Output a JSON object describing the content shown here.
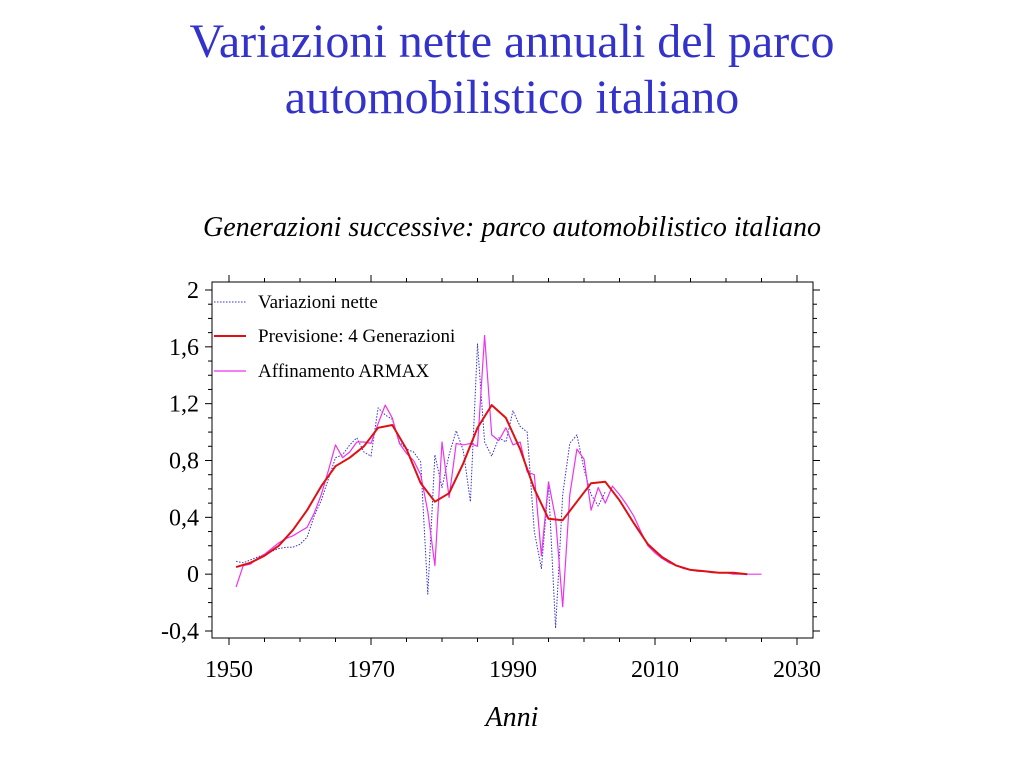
{
  "slide": {
    "title_line1": "Variazioni nette annuali del parco",
    "title_line2": "automobilistico italiano",
    "title_color": "#3333cc"
  },
  "chart_data": {
    "type": "line",
    "title": "Generazioni successive: parco automobilistico italiano",
    "xlabel": "Anni",
    "ylabel": "",
    "xlim": [
      1950,
      2030
    ],
    "ylim": [
      -0.4,
      2
    ],
    "x_ticks": [
      1950,
      1970,
      1990,
      2010,
      2030
    ],
    "x_tick_labels": [
      "1950",
      "1970",
      "1990",
      "2010",
      "2030"
    ],
    "y_ticks": [
      -0.4,
      0,
      0.4,
      0.8,
      1.2,
      1.6,
      2
    ],
    "y_tick_labels": [
      "-0,4",
      "0",
      "0,4",
      "0,8",
      "1,2",
      "1,6",
      "2"
    ],
    "grid": false,
    "legend_position": "top-left",
    "series": [
      {
        "name": "Variazioni nette",
        "color": "#3333cc",
        "style": "dotted",
        "points": [
          [
            1951,
            0.09
          ],
          [
            1952,
            0.08
          ],
          [
            1953,
            0.1
          ],
          [
            1954,
            0.12
          ],
          [
            1955,
            0.14
          ],
          [
            1956,
            0.16
          ],
          [
            1957,
            0.18
          ],
          [
            1958,
            0.19
          ],
          [
            1959,
            0.19
          ],
          [
            1960,
            0.21
          ],
          [
            1961,
            0.26
          ],
          [
            1962,
            0.41
          ],
          [
            1963,
            0.52
          ],
          [
            1964,
            0.67
          ],
          [
            1965,
            0.82
          ],
          [
            1966,
            0.84
          ],
          [
            1967,
            0.91
          ],
          [
            1968,
            0.96
          ],
          [
            1969,
            0.86
          ],
          [
            1970,
            0.83
          ],
          [
            1971,
            1.17
          ],
          [
            1972,
            1.12
          ],
          [
            1973,
            1.09
          ],
          [
            1974,
            0.93
          ],
          [
            1975,
            0.88
          ],
          [
            1976,
            0.86
          ],
          [
            1977,
            0.79
          ],
          [
            1978,
            -0.14
          ],
          [
            1979,
            0.84
          ],
          [
            1980,
            0.61
          ],
          [
            1981,
            0.84
          ],
          [
            1982,
            1.01
          ],
          [
            1983,
            0.87
          ],
          [
            1984,
            0.51
          ],
          [
            1985,
            1.62
          ],
          [
            1986,
            0.93
          ],
          [
            1987,
            0.83
          ],
          [
            1988,
            0.96
          ],
          [
            1989,
            0.93
          ],
          [
            1990,
            1.15
          ],
          [
            1991,
            1.04
          ],
          [
            1992,
            1.0
          ],
          [
            1993,
            0.3
          ],
          [
            1994,
            0.04
          ],
          [
            1995,
            0.63
          ],
          [
            1996,
            -0.38
          ],
          [
            1997,
            0.56
          ],
          [
            1998,
            0.92
          ],
          [
            1999,
            0.98
          ],
          [
            2000,
            0.74
          ],
          [
            2001,
            0.56
          ],
          [
            2002,
            0.48
          ],
          [
            2003,
            0.58
          ]
        ]
      },
      {
        "name": "Previsione:  4 Generazioni",
        "color": "#dd1111",
        "style": "solid",
        "points": [
          [
            1951,
            0.05
          ],
          [
            1953,
            0.08
          ],
          [
            1955,
            0.13
          ],
          [
            1957,
            0.2
          ],
          [
            1959,
            0.31
          ],
          [
            1961,
            0.45
          ],
          [
            1963,
            0.62
          ],
          [
            1965,
            0.76
          ],
          [
            1967,
            0.82
          ],
          [
            1969,
            0.9
          ],
          [
            1971,
            1.03
          ],
          [
            1973,
            1.05
          ],
          [
            1975,
            0.88
          ],
          [
            1977,
            0.64
          ],
          [
            1979,
            0.51
          ],
          [
            1981,
            0.57
          ],
          [
            1983,
            0.78
          ],
          [
            1985,
            1.03
          ],
          [
            1987,
            1.19
          ],
          [
            1989,
            1.1
          ],
          [
            1991,
            0.88
          ],
          [
            1993,
            0.6
          ],
          [
            1995,
            0.39
          ],
          [
            1997,
            0.38
          ],
          [
            1999,
            0.51
          ],
          [
            2001,
            0.64
          ],
          [
            2003,
            0.65
          ],
          [
            2005,
            0.52
          ],
          [
            2007,
            0.36
          ],
          [
            2009,
            0.21
          ],
          [
            2011,
            0.12
          ],
          [
            2013,
            0.06
          ],
          [
            2015,
            0.03
          ],
          [
            2017,
            0.02
          ],
          [
            2019,
            0.01
          ],
          [
            2021,
            0.01
          ],
          [
            2023,
            0.0
          ]
        ]
      },
      {
        "name": "Affinamento ARMAX",
        "color": "#ee33ee",
        "style": "solid",
        "points": [
          [
            1951,
            -0.09
          ],
          [
            1952,
            0.06
          ],
          [
            1953,
            0.07
          ],
          [
            1954,
            0.11
          ],
          [
            1955,
            0.14
          ],
          [
            1956,
            0.18
          ],
          [
            1957,
            0.22
          ],
          [
            1958,
            0.25
          ],
          [
            1959,
            0.27
          ],
          [
            1960,
            0.3
          ],
          [
            1961,
            0.33
          ],
          [
            1962,
            0.43
          ],
          [
            1963,
            0.56
          ],
          [
            1964,
            0.73
          ],
          [
            1965,
            0.91
          ],
          [
            1966,
            0.82
          ],
          [
            1967,
            0.86
          ],
          [
            1968,
            0.93
          ],
          [
            1969,
            0.93
          ],
          [
            1970,
            0.92
          ],
          [
            1971,
            1.06
          ],
          [
            1972,
            1.19
          ],
          [
            1973,
            1.1
          ],
          [
            1974,
            0.92
          ],
          [
            1975,
            0.85
          ],
          [
            1976,
            0.8
          ],
          [
            1977,
            0.7
          ],
          [
            1978,
            0.44
          ],
          [
            1979,
            0.06
          ],
          [
            1980,
            0.93
          ],
          [
            1981,
            0.54
          ],
          [
            1982,
            0.92
          ],
          [
            1983,
            0.91
          ],
          [
            1984,
            0.92
          ],
          [
            1985,
            0.9
          ],
          [
            1986,
            1.68
          ],
          [
            1987,
            0.98
          ],
          [
            1988,
            0.94
          ],
          [
            1989,
            1.03
          ],
          [
            1990,
            0.91
          ],
          [
            1991,
            0.93
          ],
          [
            1992,
            0.72
          ],
          [
            1993,
            0.7
          ],
          [
            1994,
            0.13
          ],
          [
            1995,
            0.65
          ],
          [
            1996,
            0.39
          ],
          [
            1997,
            -0.23
          ],
          [
            1998,
            0.56
          ],
          [
            1999,
            0.88
          ],
          [
            2000,
            0.81
          ],
          [
            2001,
            0.45
          ],
          [
            2002,
            0.61
          ],
          [
            2003,
            0.5
          ],
          [
            2004,
            0.62
          ],
          [
            2005,
            0.56
          ],
          [
            2006,
            0.49
          ],
          [
            2007,
            0.41
          ],
          [
            2008,
            0.3
          ],
          [
            2009,
            0.2
          ],
          [
            2010,
            0.15
          ],
          [
            2011,
            0.11
          ],
          [
            2012,
            0.08
          ],
          [
            2013,
            0.06
          ],
          [
            2014,
            0.04
          ],
          [
            2015,
            0.03
          ],
          [
            2016,
            0.02
          ],
          [
            2017,
            0.02
          ],
          [
            2018,
            0.01
          ],
          [
            2019,
            0.01
          ],
          [
            2020,
            0.01
          ],
          [
            2021,
            0.0
          ],
          [
            2022,
            0.0
          ],
          [
            2023,
            0.0
          ],
          [
            2024,
            0.0
          ],
          [
            2025,
            0.0
          ]
        ]
      }
    ]
  }
}
